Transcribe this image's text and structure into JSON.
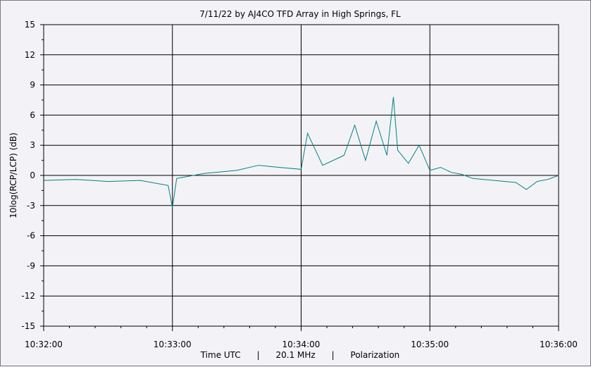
{
  "chart_data": {
    "type": "line",
    "title": "7/11/22  by  AJ4CO TFD Array  in  High Springs, FL",
    "ylabel": "10log(RCP/LCP) (dB)",
    "xlabel": "Time UTC      |      20.1 MHz      |      Polarization",
    "ylim": [
      -15,
      15
    ],
    "yticks": [
      15,
      12,
      9,
      6,
      3,
      0,
      -3,
      -6,
      -9,
      -12,
      -15
    ],
    "ytick_labels": [
      "15",
      "12",
      "9",
      "6",
      "3",
      "0",
      "-3",
      "-6",
      "-9",
      "-12",
      "-15"
    ],
    "xlim": [
      "10:32:00",
      "10:36:00"
    ],
    "xticks": [
      "10:32:00",
      "10:33:00",
      "10:34:00",
      "10:35:00",
      "10:36:00"
    ],
    "grid": true,
    "series": [
      {
        "color": "#008080",
        "x_seconds_after_1032": [
          0,
          15,
          30,
          45,
          58,
          60,
          62,
          75,
          90,
          100,
          110,
          120,
          123,
          130,
          140,
          145,
          150,
          155,
          160,
          163,
          165,
          170,
          175,
          180,
          185,
          190,
          195,
          200,
          205,
          210,
          215,
          220,
          225,
          230,
          235,
          240
        ],
        "y": [
          -0.5,
          -0.4,
          -0.6,
          -0.5,
          -1.0,
          -3.2,
          -0.3,
          0.2,
          0.5,
          1.0,
          0.8,
          0.6,
          4.2,
          1.0,
          2.0,
          5.0,
          1.5,
          5.4,
          2.0,
          7.8,
          2.5,
          1.2,
          3.0,
          0.5,
          0.8,
          0.3,
          0.1,
          -0.3,
          -0.4,
          -0.5,
          -0.6,
          -0.7,
          -1.4,
          -0.6,
          -0.4,
          0.0
        ]
      }
    ]
  }
}
